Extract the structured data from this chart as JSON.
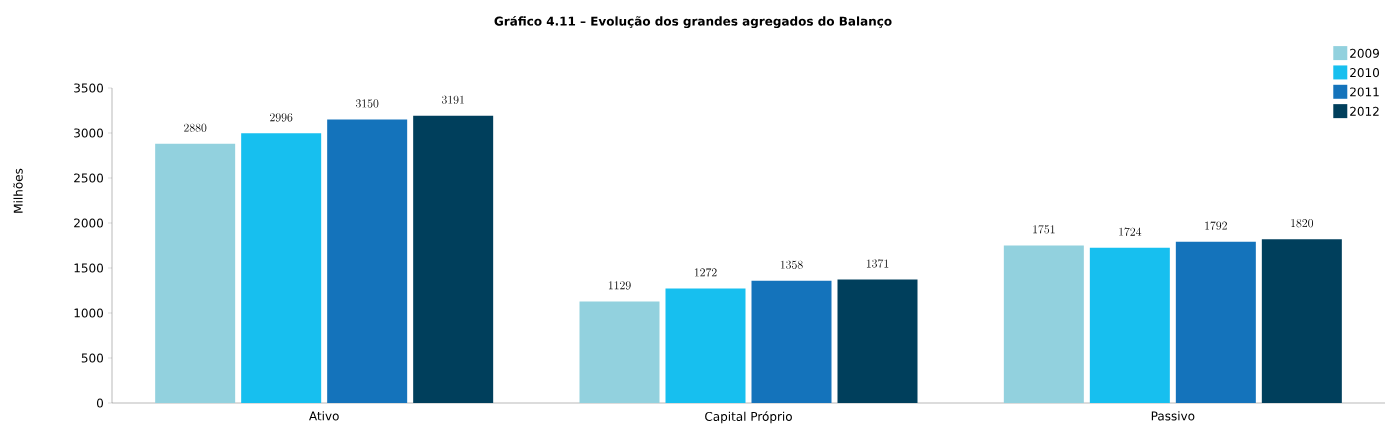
{
  "chart_data": {
    "type": "bar",
    "title": "Gráfico 4.11 – Evolução dos grandes agregados do Balanço",
    "ylabel": "Milhões",
    "categories": [
      "Ativo",
      "Capital Próprio",
      "Passivo"
    ],
    "series": [
      {
        "name": "2009",
        "color": "#92d1de",
        "values": [
          2880,
          1129,
          1751
        ]
      },
      {
        "name": "2010",
        "color": "#17bfef",
        "values": [
          2996,
          1272,
          1724
        ]
      },
      {
        "name": "2011",
        "color": "#1473bb",
        "values": [
          3150,
          1358,
          1792
        ]
      },
      {
        "name": "2012",
        "color": "#003f5c",
        "values": [
          3191,
          1371,
          1820
        ]
      }
    ],
    "ylim": [
      0,
      3500
    ],
    "yticks": [
      0,
      500,
      1000,
      1500,
      2000,
      2500,
      3000,
      3500
    ],
    "data_labels": true,
    "grid": false,
    "legend": "top right"
  }
}
